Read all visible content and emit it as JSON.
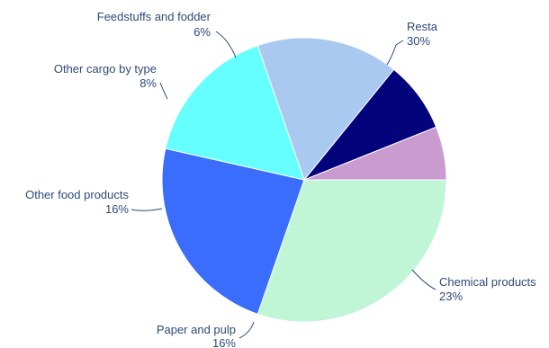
{
  "chart_data": {
    "type": "pie",
    "title": "",
    "slices": [
      {
        "label": "Resta",
        "value": 30,
        "pct_label": "30%",
        "color": "#c0f5d6"
      },
      {
        "label": "Chemical products",
        "value": 23,
        "pct_label": "23%",
        "color": "#3a6dfc"
      },
      {
        "label": "Paper and pulp",
        "value": 16,
        "pct_label": "16%",
        "color": "#66ffff"
      },
      {
        "label": "Other food products",
        "value": 16,
        "pct_label": "16%",
        "color": "#a9c9f0"
      },
      {
        "label": "Other cargo by type",
        "value": 8,
        "pct_label": "8%",
        "color": "#03037b"
      },
      {
        "label": "Feedstuffs and fodder",
        "value": 6,
        "pct_label": "6%",
        "color": "#c99bcf"
      }
    ],
    "start_angle_deg": 0,
    "direction": "clockwise",
    "legend": "none",
    "labels": "outside-with-leader-lines"
  }
}
